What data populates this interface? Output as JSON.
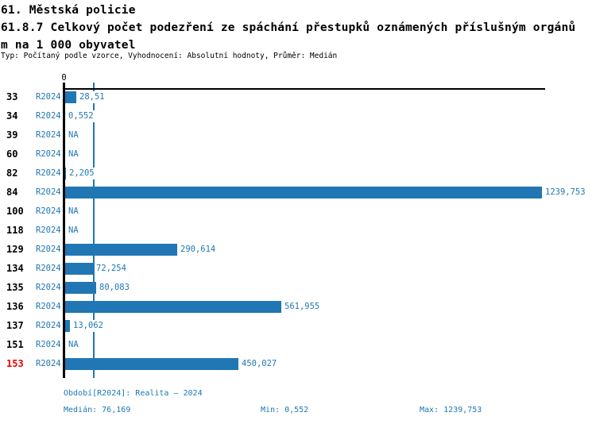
{
  "header": {
    "title_line1": "61. Městská policie",
    "title_line2": "61.8.7 Celkový počet podezření ze spáchání přestupků oznámených příslušným orgánů",
    "title_line3": "m na 1 000 obyvatel",
    "subtitle": "Typ: Počítaný podle vzorce, Vyhodnocení: Absolutní hodnoty, Průměr: Medián"
  },
  "chart_data": {
    "type": "bar",
    "orientation": "horizontal",
    "title": "61.8.7 Celkový počet podezření ze spáchání přestupků oznámených příslušným orgánům na 1 000 obyvatel",
    "series_name": "R2024",
    "categories": [
      "33",
      "34",
      "39",
      "60",
      "82",
      "84",
      "100",
      "118",
      "129",
      "134",
      "135",
      "136",
      "137",
      "151",
      "153"
    ],
    "values": [
      28.51,
      0.552,
      null,
      null,
      2.205,
      1239.753,
      null,
      null,
      290.614,
      72.254,
      80.083,
      561.955,
      13.062,
      null,
      450.027
    ],
    "value_labels": [
      "28,51",
      "0,552",
      "NA",
      "NA",
      "2,205",
      "1239,753",
      "NA",
      "NA",
      "290,614",
      "72,254",
      "80,083",
      "561,955",
      "13,062",
      "NA",
      "450,027"
    ],
    "na_label": "NA",
    "highlighted_category": "153",
    "x_axis": {
      "position": "top",
      "visible_ticks": [
        "0"
      ],
      "range": [
        0,
        1252
      ]
    },
    "median_line_value": 76.169,
    "grid": false,
    "legend": false,
    "colors": {
      "bar": "#2077B4",
      "value_text": "#1F77B4",
      "median_line": "#2077B4",
      "highlight_text": "#EE0000",
      "axis": "#000000"
    }
  },
  "footer": {
    "period": "Období[R2024]: Realita – 2024",
    "median": "Medián: 76,169",
    "min": "Min: 0,552",
    "max": "Max: 1239,753"
  }
}
